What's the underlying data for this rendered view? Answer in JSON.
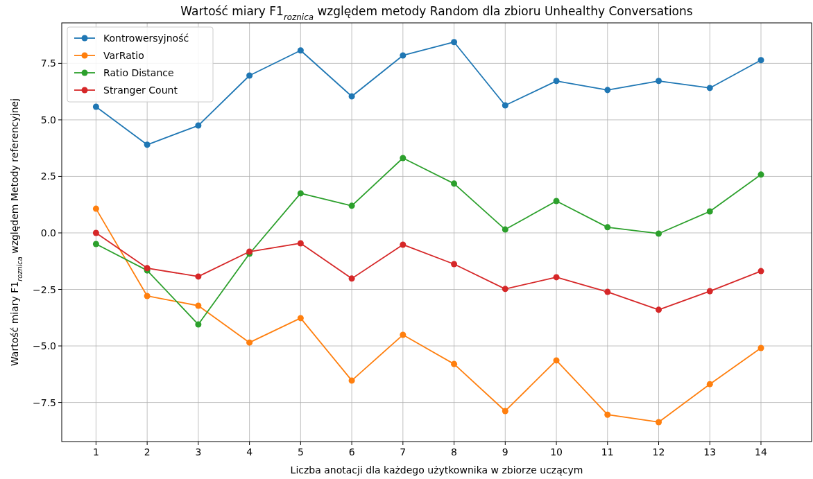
{
  "chart_data": {
    "type": "line",
    "title": "Wartość miary F1$_{roznica}$ względem metody Random dla zbioru Unhealthy Conversations",
    "xlabel": "Liczba anotacji dla każdego użytkownika w zbiorze uczącym",
    "ylabel": "Wartość miary F1$_{roznica}$ względem Metody referencyjnej",
    "x": [
      1,
      2,
      3,
      4,
      5,
      6,
      7,
      8,
      9,
      10,
      11,
      12,
      13,
      14
    ],
    "series": [
      {
        "name": "Kontrowersyjność",
        "color": "#1f77b4",
        "values": [
          5.58,
          3.9,
          4.75,
          6.96,
          8.07,
          6.04,
          7.85,
          8.44,
          5.64,
          6.72,
          6.32,
          6.72,
          6.41,
          7.64
        ]
      },
      {
        "name": "VarRatio",
        "color": "#ff7f0e",
        "values": [
          1.07,
          -2.79,
          -3.22,
          -4.85,
          -3.77,
          -6.53,
          -4.51,
          -5.8,
          -7.88,
          -5.64,
          -8.04,
          -8.37,
          -6.69,
          -5.09
        ]
      },
      {
        "name": "Ratio Distance",
        "color": "#2ca02c",
        "values": [
          -0.49,
          -1.66,
          -4.05,
          -0.92,
          1.75,
          1.2,
          3.31,
          2.18,
          0.15,
          1.41,
          0.25,
          -0.03,
          0.95,
          2.58
        ]
      },
      {
        "name": "Stranger Count",
        "color": "#d62728",
        "values": [
          0,
          -1.56,
          -1.93,
          -0.83,
          -0.46,
          -2.02,
          -0.52,
          -1.38,
          -2.48,
          -1.96,
          -2.61,
          -3.4,
          -2.58,
          -1.69
        ]
      }
    ],
    "xlim": [
      0.33,
      14.99
    ],
    "xticks": [
      1,
      2,
      3,
      4,
      5,
      6,
      7,
      8,
      9,
      10,
      11,
      12,
      13,
      14
    ],
    "ylim": [
      -9.23,
      9.29
    ],
    "yticks": [
      {
        "value": -7.5,
        "label": "−7.5"
      },
      {
        "value": -5,
        "label": "−5.0"
      },
      {
        "value": -2.5,
        "label": "−2.5"
      },
      {
        "value": 0,
        "label": "0.0"
      },
      {
        "value": 2.5,
        "label": "2.5"
      },
      {
        "value": 5,
        "label": "5.0"
      },
      {
        "value": 7.5,
        "label": "7.5"
      }
    ],
    "grid": true,
    "legend": "top left",
    "marker": "circle",
    "line_style": "solid"
  }
}
